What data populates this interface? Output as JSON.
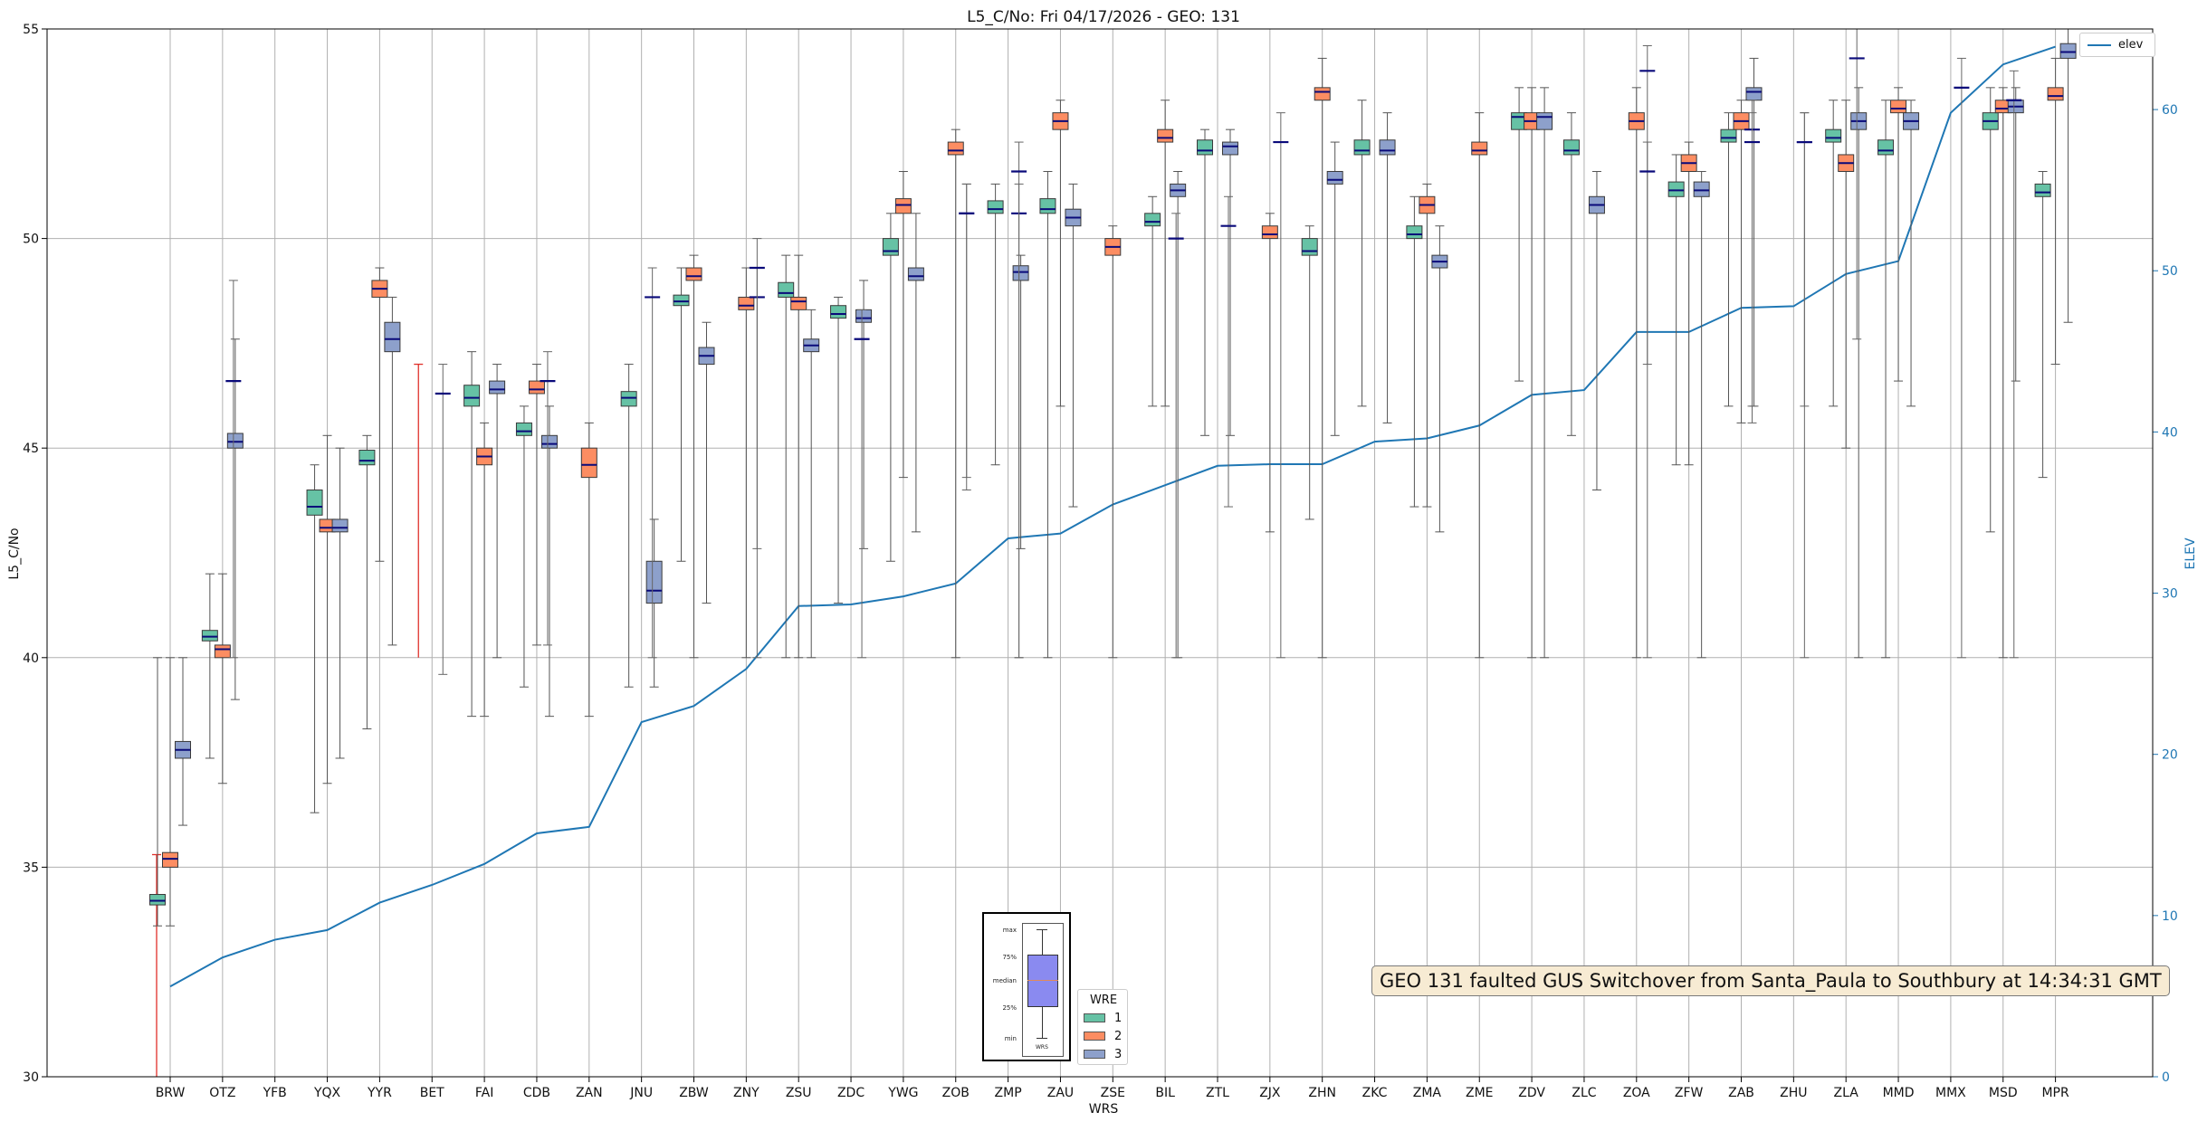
{
  "chart_data": {
    "type": "box",
    "title": "L5_C/No: Fri 04/17/2026 - GEO: 131",
    "xlabel": "WRS",
    "ylabel": "L5_C/No",
    "y2label": "ELEV",
    "ylim": [
      30,
      55
    ],
    "y2lim": [
      0,
      65
    ],
    "yticks": [
      30,
      35,
      40,
      45,
      50,
      55
    ],
    "y2ticks": [
      0,
      10,
      20,
      30,
      40,
      50,
      60
    ],
    "grid": true,
    "categories": [
      "BRW",
      "OTZ",
      "YFB",
      "YQX",
      "YYR",
      "BET",
      "FAI",
      "CDB",
      "ZAN",
      "JNU",
      "ZBW",
      "ZNY",
      "ZSU",
      "ZDC",
      "YWG",
      "ZOB",
      "ZMP",
      "ZAU",
      "ZSE",
      "BIL",
      "ZTL",
      "ZJX",
      "ZHN",
      "ZKC",
      "ZMA",
      "ZME",
      "ZDV",
      "ZLC",
      "ZOA",
      "ZFW",
      "ZAB",
      "ZHU",
      "ZLA",
      "MMD",
      "MMX",
      "MSD",
      "MPR"
    ],
    "wre_colors": {
      "1": "#66c2a5",
      "2": "#fc8d62",
      "3": "#8da0cb"
    },
    "series": [
      {
        "name": "1",
        "boxes": [
          [
            34.1,
            34.2,
            34.35,
            33.6,
            40.0
          ],
          [
            40.4,
            40.5,
            40.65,
            37.6,
            42.0
          ],
          [
            43.4,
            43.6,
            44.0,
            36.3,
            44.6
          ],
          [
            44.6,
            44.7,
            44.95,
            38.3,
            45.3
          ],
          [
            46.0,
            46.2,
            46.5,
            38.6,
            47.3
          ],
          [
            45.3,
            45.4,
            45.6,
            39.3,
            46.0
          ],
          [
            46.0,
            46.2,
            46.35,
            39.3,
            47.0
          ],
          [
            48.4,
            48.5,
            48.65,
            42.3,
            49.3
          ],
          [
            48.6,
            48.7,
            48.95,
            40.0,
            49.6
          ],
          [
            48.1,
            48.2,
            48.4,
            41.3,
            48.6
          ],
          [
            49.6,
            49.7,
            50.0,
            42.3,
            50.6
          ],
          [
            50.6,
            50.7,
            50.9,
            44.6,
            51.3
          ],
          [
            50.6,
            50.7,
            50.95,
            40.0,
            51.6
          ],
          [
            50.3,
            50.4,
            50.6,
            46.0,
            51.0
          ],
          [
            52.0,
            52.1,
            52.35,
            45.3,
            52.6
          ],
          [
            49.6,
            49.7,
            50.0,
            43.3,
            50.3
          ],
          [
            52.0,
            52.1,
            52.35,
            46.0,
            53.3
          ],
          [
            50.0,
            50.1,
            50.3,
            43.6,
            51.0
          ],
          [
            52.6,
            52.9,
            53.0,
            46.6,
            53.6
          ],
          [
            52.0,
            52.1,
            52.35,
            45.3,
            53.0
          ],
          [
            51.0,
            51.15,
            51.35,
            44.6,
            52.0
          ],
          [
            52.3,
            52.4,
            52.6,
            46.0,
            53.0
          ],
          [
            52.3,
            52.4,
            52.6,
            46.0,
            53.3
          ],
          [
            52.0,
            52.1,
            52.35,
            40.0,
            53.3
          ],
          [
            52.6,
            52.8,
            53.0,
            43.0,
            53.6
          ],
          [
            51.0,
            51.1,
            51.3,
            44.3,
            51.6
          ]
        ]
      },
      {
        "name": "2",
        "boxes": [
          [
            35.0,
            35.2,
            35.35,
            33.6,
            40.0
          ],
          [
            40.0,
            40.2,
            40.3,
            37.0,
            42.0
          ],
          [
            43.0,
            43.1,
            43.3,
            37.0,
            45.3
          ],
          [
            48.6,
            48.8,
            49.0,
            42.3,
            49.3
          ],
          [
            44.6,
            44.8,
            45.0,
            38.6,
            45.6
          ],
          [
            46.3,
            46.4,
            46.6,
            40.3,
            47.0
          ],
          [
            44.3,
            44.6,
            45.0,
            38.6,
            45.6
          ],
          [
            49.0,
            49.1,
            49.3,
            40.0,
            49.6
          ],
          [
            48.3,
            48.4,
            48.6,
            40.0,
            49.3
          ],
          [
            48.3,
            48.5,
            48.6,
            40.0,
            49.6
          ],
          [
            50.6,
            50.8,
            50.95,
            44.3,
            51.6
          ],
          [
            52.0,
            52.1,
            52.3,
            40.0,
            52.6
          ],
          [
            52.6,
            52.8,
            53.0,
            46.0,
            53.3
          ],
          [
            49.6,
            49.8,
            50.0,
            40.0,
            50.3
          ],
          [
            52.3,
            52.4,
            52.6,
            46.0,
            53.3
          ],
          [
            50.0,
            50.1,
            50.3,
            43.0,
            50.6
          ],
          [
            53.3,
            53.5,
            53.6,
            40.0,
            54.3
          ],
          [
            50.6,
            50.8,
            51.0,
            43.6,
            51.3
          ],
          [
            52.0,
            52.1,
            52.3,
            40.0,
            53.0
          ],
          [
            52.6,
            52.8,
            53.0,
            40.0,
            53.6
          ],
          [
            52.6,
            52.8,
            53.0,
            40.0,
            53.6
          ],
          [
            51.6,
            51.8,
            52.0,
            44.6,
            52.3
          ],
          [
            52.6,
            52.8,
            53.0,
            45.6,
            53.3
          ],
          [
            51.6,
            51.8,
            52.0,
            45.0,
            53.3
          ],
          [
            53.0,
            53.1,
            53.3,
            46.6,
            53.6
          ],
          [
            53.0,
            53.1,
            53.3,
            40.0,
            53.6
          ],
          [
            53.3,
            53.4,
            53.6,
            47.0,
            54.3
          ]
        ]
      },
      {
        "name": "3",
        "boxes": [
          [
            37.6,
            37.8,
            38.0,
            36.0,
            40.0
          ],
          [
            45.0,
            45.15,
            45.35,
            39.0,
            47.6
          ],
          [
            43.0,
            43.1,
            43.3,
            37.6,
            45.0
          ],
          [
            47.3,
            47.6,
            48.0,
            40.3,
            48.6
          ],
          [
            46.3,
            46.4,
            46.6,
            40.0,
            47.0
          ],
          [
            45.0,
            45.1,
            45.3,
            38.6,
            46.0
          ],
          [
            41.3,
            41.6,
            42.3,
            39.3,
            43.3
          ],
          [
            47.0,
            47.2,
            47.4,
            41.3,
            48.0
          ],
          [
            47.3,
            47.45,
            47.6,
            40.0,
            48.3
          ],
          [
            48.0,
            48.1,
            48.3,
            42.6,
            49.0
          ],
          [
            49.0,
            49.1,
            49.3,
            43.0,
            50.6
          ],
          [
            49.0,
            49.2,
            49.35,
            42.6,
            49.6
          ],
          [
            50.3,
            50.5,
            50.7,
            43.6,
            51.3
          ],
          [
            51.0,
            51.15,
            51.3,
            40.0,
            51.6
          ],
          [
            52.0,
            52.2,
            52.3,
            45.3,
            52.6
          ],
          [
            51.3,
            51.4,
            51.6,
            45.3,
            52.3
          ],
          [
            52.0,
            52.1,
            52.35,
            45.6,
            53.0
          ],
          [
            49.3,
            49.45,
            49.6,
            43.0,
            50.3
          ],
          [
            52.6,
            52.9,
            53.0,
            40.0,
            53.6
          ],
          [
            50.6,
            50.8,
            51.0,
            44.0,
            51.6
          ],
          [
            51.0,
            51.15,
            51.35,
            40.0,
            51.6
          ],
          [
            53.3,
            53.5,
            53.6,
            46.0,
            54.3
          ],
          [
            52.6,
            52.8,
            53.0,
            40.0,
            53.6
          ],
          [
            52.6,
            52.8,
            53.0,
            46.0,
            53.3
          ],
          [
            53.0,
            53.15,
            53.3,
            46.6,
            53.6
          ],
          [
            54.3,
            54.45,
            54.65,
            48.0,
            55.0
          ]
        ]
      }
    ],
    "flat_markers": [
      [
        1,
        46.6,
        40.0,
        49.0
      ],
      [
        5,
        46.3,
        39.6,
        47.0
      ],
      [
        7,
        46.6,
        40.3,
        47.3
      ],
      [
        9,
        48.6,
        40.0,
        49.3
      ],
      [
        11,
        48.6,
        40.0,
        49.3
      ],
      [
        11,
        49.3,
        42.6,
        50.0
      ],
      [
        13,
        47.6,
        40.0,
        48.3
      ],
      [
        15,
        50.6,
        44.0,
        51.3
      ],
      [
        15,
        50.6,
        44.3,
        51.3
      ],
      [
        16,
        50.6,
        40.0,
        51.3
      ],
      [
        16,
        51.6,
        40.0,
        52.3
      ],
      [
        19,
        50.0,
        40.0,
        50.6
      ],
      [
        20,
        50.3,
        43.6,
        51.0
      ],
      [
        21,
        52.3,
        40.0,
        53.0
      ],
      [
        28,
        54.0,
        47.0,
        54.6
      ],
      [
        28,
        51.6,
        40.0,
        52.3
      ],
      [
        30,
        52.6,
        45.6,
        53.3
      ],
      [
        30,
        52.3,
        46.0,
        53.0
      ],
      [
        31,
        52.3,
        40.0,
        53.0
      ],
      [
        31,
        52.3,
        46.0,
        53.0
      ],
      [
        32,
        54.3,
        47.6,
        55.0
      ],
      [
        34,
        53.6,
        40.0,
        54.3
      ],
      [
        35,
        53.3,
        40.0,
        54.0
      ]
    ],
    "red_whiskers": [
      {
        "category": "BRW",
        "low": 30.0,
        "high": 35.3
      },
      {
        "category": "BET",
        "low": 40.0,
        "high": 47.0
      }
    ],
    "elev": {
      "name": "elev",
      "values": [
        5.6,
        7.4,
        8.5,
        9.1,
        10.8,
        11.9,
        13.2,
        15.1,
        15.5,
        22.0,
        23.0,
        25.3,
        29.2,
        29.3,
        29.8,
        30.6,
        33.4,
        33.7,
        35.5,
        36.7,
        37.9,
        38.0,
        38.0,
        39.4,
        39.6,
        40.4,
        42.3,
        42.6,
        46.2,
        46.2,
        47.7,
        47.8,
        49.8,
        50.6,
        59.8,
        62.8,
        63.9
      ]
    },
    "annotation": "GEO 131 faulted GUS Switchover from Santa_Paula to Southbury at 14:34:31 GMT",
    "legend": {
      "title": "WRE",
      "entries": [
        "1",
        "2",
        "3"
      ],
      "elev_label": "elev"
    },
    "inset_legend": {
      "labels": [
        "max",
        "75%",
        "median",
        "25%",
        "min"
      ],
      "xlabel": "WRS"
    }
  }
}
